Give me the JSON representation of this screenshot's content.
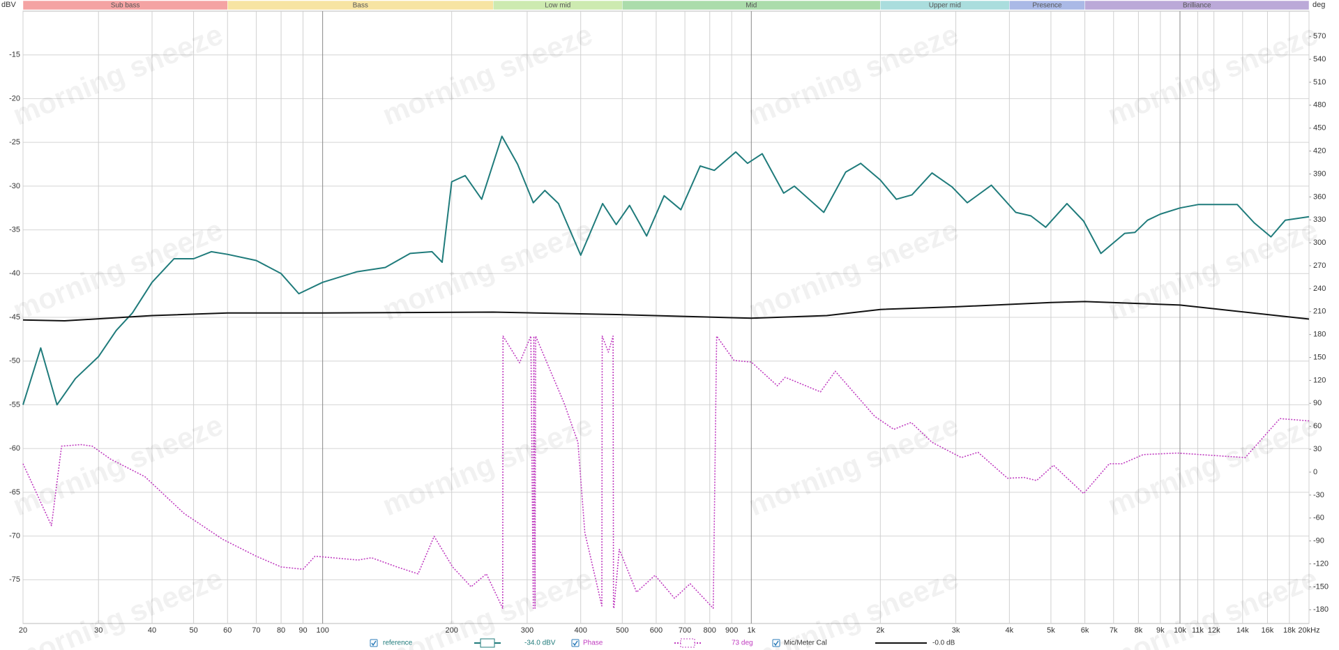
{
  "chart_data": {
    "type": "line",
    "xscale": "log",
    "xlim": [
      20,
      20000
    ],
    "ylim": [
      -80,
      -10
    ],
    "y2lim": [
      -198,
      603
    ],
    "ylabel": "dBV",
    "y2label": "deg",
    "grid": true,
    "watermark": "morning sneeze",
    "xticks": [
      20,
      30,
      40,
      50,
      60,
      70,
      80,
      90,
      100,
      200,
      300,
      400,
      500,
      600,
      700,
      800,
      900,
      {
        "value": 1000,
        "label": "1k"
      },
      {
        "value": 2000,
        "label": "2k"
      },
      {
        "value": 3000,
        "label": "3k"
      },
      {
        "value": 4000,
        "label": "4k"
      },
      {
        "value": 5000,
        "label": "5k"
      },
      {
        "value": 6000,
        "label": "6k"
      },
      {
        "value": 7000,
        "label": "7k"
      },
      {
        "value": 8000,
        "label": "8k"
      },
      {
        "value": 9000,
        "label": "9k"
      },
      {
        "value": 10000,
        "label": "10k"
      },
      {
        "value": 11000,
        "label": "11k"
      },
      {
        "value": 12000,
        "label": "12k"
      },
      {
        "value": 14000,
        "label": "14k"
      },
      {
        "value": 16000,
        "label": "16k"
      },
      {
        "value": 18000,
        "label": "18k"
      },
      {
        "value": 20000,
        "label": "20kHz"
      }
    ],
    "yticks": [
      -75,
      -70,
      -65,
      -60,
      -55,
      -50,
      -45,
      -40,
      -35,
      -30,
      -25,
      -20,
      -15
    ],
    "y2ticks": [
      -180,
      -150,
      -120,
      -90,
      -60,
      -30,
      0,
      30,
      60,
      90,
      120,
      150,
      180,
      210,
      240,
      270,
      300,
      330,
      360,
      390,
      420,
      450,
      480,
      510,
      540,
      570
    ],
    "bands": [
      {
        "label": "Sub bass",
        "from": 20,
        "to": 60,
        "color": "#f4a3a3"
      },
      {
        "label": "Bass",
        "from": 60,
        "to": 250,
        "color": "#f7e4a2"
      },
      {
        "label": "Low mid",
        "from": 250,
        "to": 500,
        "color": "#cdeab0"
      },
      {
        "label": "Mid",
        "from": 500,
        "to": 2000,
        "color": "#abdcab"
      },
      {
        "label": "Upper mid",
        "from": 2000,
        "to": 4000,
        "color": "#aadddd"
      },
      {
        "label": "Presence",
        "from": 4000,
        "to": 6000,
        "color": "#aab9e6"
      },
      {
        "label": "Brilliance",
        "from": 6000,
        "to": 20000,
        "color": "#bba9d8"
      }
    ],
    "series": [
      {
        "name": "reference",
        "readout": "-34.0 dBV",
        "color": "#1f7b7b",
        "style": "solid",
        "x": [
          20,
          22,
          24,
          26.5,
          30,
          33,
          36,
          40,
          45,
          50,
          55,
          60,
          70,
          80,
          88,
          100,
          120,
          140,
          160,
          180,
          190,
          200,
          215,
          235,
          262,
          285,
          310,
          330,
          355,
          400,
          450,
          484,
          520,
          570,
          626,
          685,
          760,
          820,
          920,
          980,
          1060,
          1190,
          1260,
          1476,
          1660,
          1800,
          2000,
          2180,
          2370,
          2640,
          2940,
          3190,
          3630,
          4140,
          4490,
          4860,
          5450,
          5960,
          6540,
          7430,
          7850,
          8400,
          9000,
          10000,
          11050,
          13600,
          14900,
          16300,
          17600,
          20000
        ],
        "values": [
          -55,
          -48.5,
          -55,
          -52,
          -49.5,
          -46.5,
          -44.5,
          -41,
          -38.3,
          -38.3,
          -37.5,
          -37.8,
          -38.5,
          -40,
          -42.3,
          -41,
          -39.8,
          -39.3,
          -37.7,
          -37.5,
          -38.7,
          -29.5,
          -28.8,
          -31.5,
          -24.3,
          -27.5,
          -31.9,
          -30.5,
          -32,
          -37.9,
          -32,
          -34.4,
          -32.2,
          -35.7,
          -31.1,
          -32.7,
          -27.7,
          -28.2,
          -26.1,
          -27.4,
          -26.3,
          -30.8,
          -30,
          -33,
          -28.4,
          -27.4,
          -29.3,
          -31.5,
          -31,
          -28.5,
          -30.1,
          -31.9,
          -29.9,
          -33,
          -33.4,
          -34.7,
          -32,
          -34,
          -37.7,
          -35.4,
          -35.3,
          -33.9,
          -33.2,
          -32.5,
          -32.1,
          -32.1,
          -34.2,
          -35.8,
          -33.9,
          -33.5
        ]
      },
      {
        "name": "Phase",
        "readout": "73 deg",
        "color": "#c03cc0",
        "style": "dotted",
        "axis": "y2",
        "x": [
          20,
          23.3,
          24.6,
          27.3,
          29,
          32,
          38.5,
          47.5,
          58.5,
          70,
          80,
          90,
          96,
          121,
          130,
          149,
          167,
          182,
          201,
          222,
          241,
          263,
          263.5,
          288,
          306,
          310,
          311,
          313,
          314,
          366,
          394,
          409,
          448,
          449,
          464,
          476,
          477,
          478,
          492,
          540,
          596,
          662,
          720,
          815,
          830,
          912,
          1000,
          1150,
          1200,
          1450,
          1570,
          1940,
          2150,
          2360,
          2640,
          3090,
          3380,
          3960,
          4330,
          4630,
          5070,
          5960,
          6840,
          7330,
          8210,
          9860,
          14200,
          17100,
          20000
        ],
        "values": [
          11,
          -70,
          34,
          36,
          34,
          17,
          -6,
          -54,
          -88,
          -110,
          -124,
          -127,
          -110,
          -115,
          -112,
          -124,
          -133,
          -84,
          -124,
          -150,
          -133,
          -178,
          178,
          143,
          178,
          -178,
          178,
          -178,
          178,
          90,
          39,
          -79,
          -175,
          178,
          157,
          178,
          -178,
          -178,
          -101,
          -157,
          -135,
          -165,
          -146,
          -178,
          178,
          146,
          144,
          113,
          124,
          105,
          132,
          73,
          56,
          65,
          39,
          19,
          26,
          -8,
          -7,
          -11,
          9,
          -28,
          11,
          11,
          23,
          25,
          19,
          70,
          67
        ]
      },
      {
        "name": "Mic/Meter Cal",
        "readout": "-0.0 dB",
        "color": "#111111",
        "style": "solid",
        "x": [
          20,
          25,
          40,
          60,
          100,
          250,
          500,
          1000,
          1500,
          2000,
          3000,
          5000,
          6000,
          10000,
          20000
        ],
        "values": [
          -45.3,
          -45.4,
          -44.8,
          -44.5,
          -44.5,
          -44.4,
          -44.7,
          -45.1,
          -44.8,
          -44.1,
          -43.8,
          -43.3,
          -43.2,
          -43.6,
          -45.2
        ]
      }
    ]
  }
}
